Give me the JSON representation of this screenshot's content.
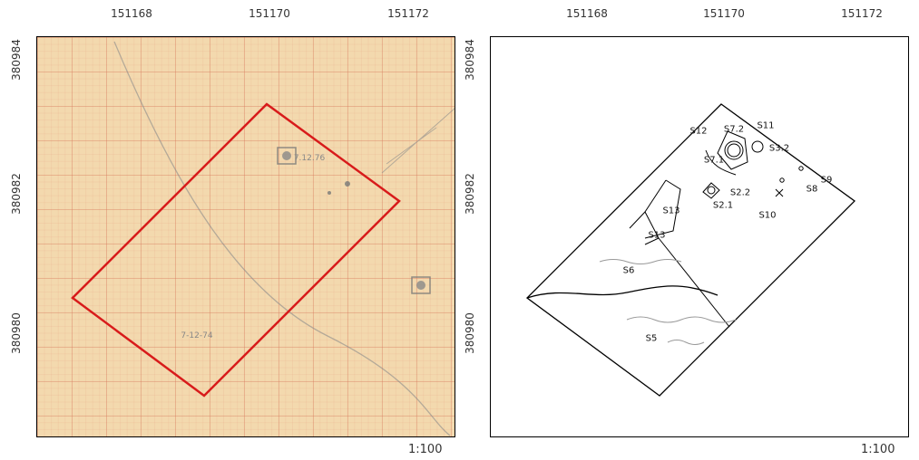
{
  "x_ticks": [
    "151168",
    "151170",
    "151172"
  ],
  "y_ticks": [
    "380984",
    "380982",
    "380980"
  ],
  "scale": "1:100",
  "left_panel": {
    "annotations": [
      "7.12.76",
      "7-12-74"
    ]
  },
  "right_panel": {
    "feature_labels": {
      "s12": "S12",
      "s7_2": "S7.2",
      "s11": "S11",
      "s3_2": "S3.2",
      "s7_1": "S7.1",
      "s8": "S8",
      "s9": "S9",
      "s2_2": "S2.2",
      "s2_1": "S2.1",
      "s10": "S10",
      "s13a": "S13",
      "s13b": "S13",
      "s6": "S6",
      "s5": "S5"
    }
  },
  "colors": {
    "outline": "#d81b1b",
    "paper": "#f3d9ae",
    "grid": "#d6785a"
  }
}
